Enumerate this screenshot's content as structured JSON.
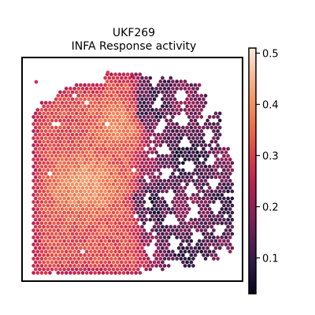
{
  "chart_data": {
    "type": "heatmap",
    "title": "UKF269",
    "subtitle": "INFA Response activity",
    "xlabel": "",
    "ylabel": "",
    "grid": false,
    "axes_ticks": false,
    "colormap": "rocket",
    "colorbar": {
      "range": [
        0.03,
        0.51
      ],
      "ticks": [
        0.1,
        0.2,
        0.3,
        0.4,
        0.5
      ],
      "tick_labels": [
        "0.1",
        "0.2",
        "0.3",
        "0.4",
        "0.5"
      ],
      "placement": "right"
    },
    "colormap_stops": [
      "#03051a",
      "#2c1a41",
      "#5a1f52",
      "#8a2157",
      "#b91f52",
      "#db3b49",
      "#ee6a47",
      "#f4935f",
      "#f6bb99",
      "#faebdd"
    ],
    "value_regions": {
      "left_tissue_range": [
        0.24,
        0.42
      ],
      "left_hotspot_peak": 0.41,
      "right_tissue_range": [
        0.04,
        0.22
      ]
    }
  }
}
